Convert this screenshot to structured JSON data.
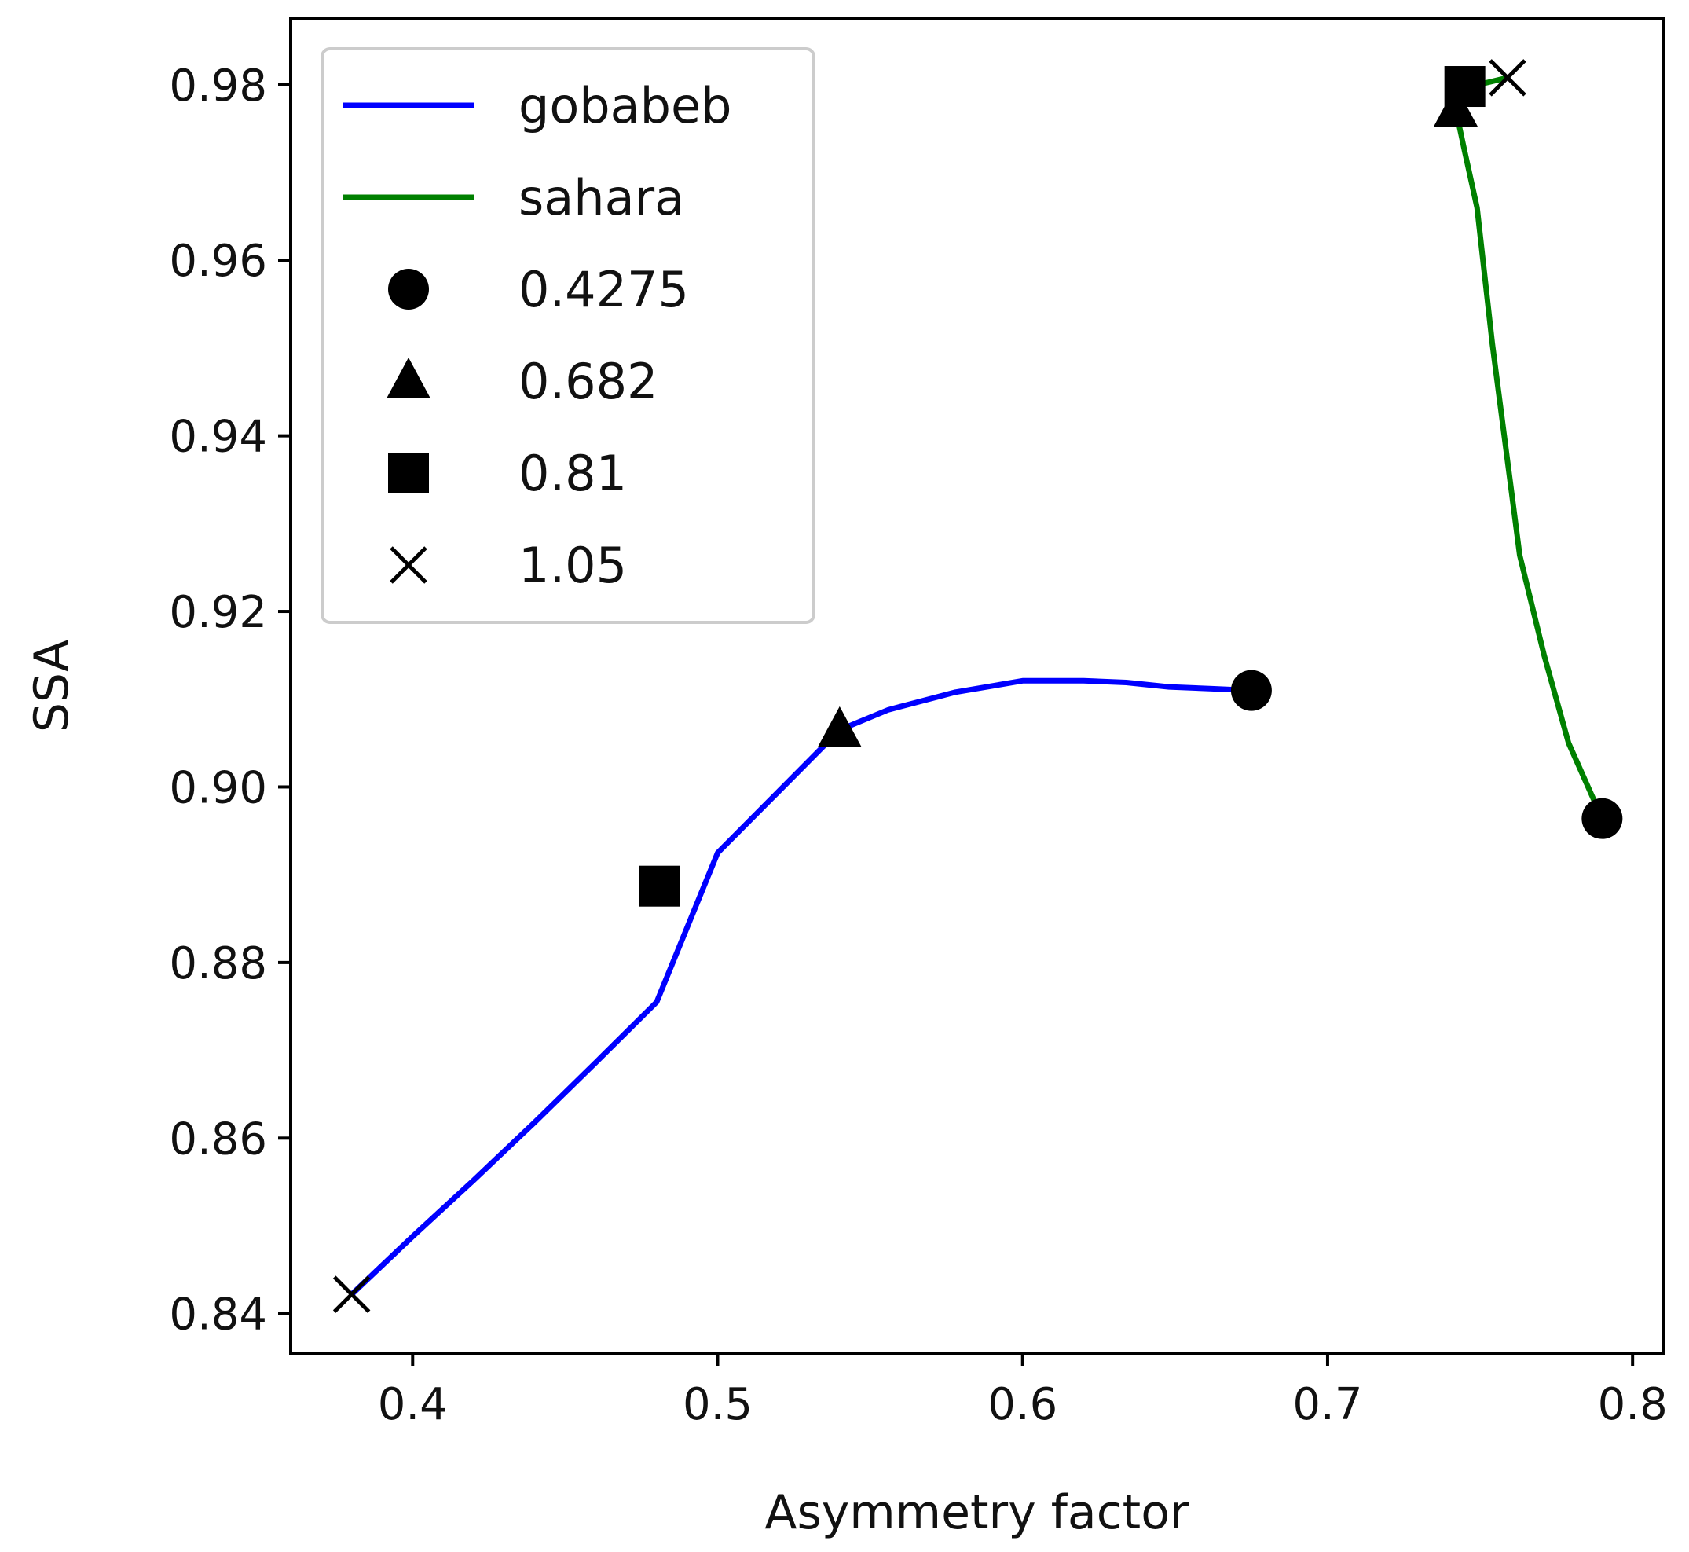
{
  "chart_data": {
    "type": "line",
    "title": "",
    "xlabel": "Asymmetry factor",
    "ylabel": "SSA",
    "xlim": [
      0.36,
      0.81
    ],
    "ylim": [
      0.8355,
      0.9875
    ],
    "xticks": [
      0.4,
      0.5,
      0.6,
      0.7,
      0.8
    ],
    "xtick_labels": [
      "0.4",
      "0.5",
      "0.6",
      "0.7",
      "0.8"
    ],
    "yticks": [
      0.84,
      0.86,
      0.88,
      0.9,
      0.92,
      0.94,
      0.96,
      0.98
    ],
    "ytick_labels": [
      "0.84",
      "0.86",
      "0.88",
      "0.90",
      "0.92",
      "0.94",
      "0.96",
      "0.98"
    ],
    "grid": false,
    "legend_position": "top-left",
    "series": [
      {
        "name": "gobabeb",
        "color": "#0000ff",
        "x": [
          0.38,
          0.4,
          0.42,
          0.44,
          0.46,
          0.48,
          0.5,
          0.52,
          0.54,
          0.556,
          0.578,
          0.6,
          0.62,
          0.634,
          0.648,
          0.662,
          0.675
        ],
        "y": [
          0.8422,
          0.8488,
          0.8552,
          0.8618,
          0.8686,
          0.8755,
          0.8925,
          0.8995,
          0.9065,
          0.9088,
          0.9108,
          0.9121,
          0.9121,
          0.9119,
          0.9114,
          0.9112,
          0.911
        ]
      },
      {
        "name": "sahara",
        "color": "#008000",
        "x": [
          0.759,
          0.747,
          0.742,
          0.745,
          0.749,
          0.754,
          0.763,
          0.771,
          0.779,
          0.79
        ],
        "y": [
          0.9808,
          0.9798,
          0.9772,
          0.9723,
          0.966,
          0.9505,
          0.9264,
          0.915,
          0.905,
          0.8964
        ]
      }
    ],
    "markers": [
      {
        "label": "0.4275",
        "shape": "circle",
        "points": [
          {
            "series": "gobabeb",
            "x": 0.675,
            "y": 0.911
          },
          {
            "series": "sahara",
            "x": 0.79,
            "y": 0.8964
          }
        ]
      },
      {
        "label": "0.682",
        "shape": "triangle",
        "points": [
          {
            "series": "gobabeb",
            "x": 0.54,
            "y": 0.9065
          },
          {
            "series": "sahara",
            "x": 0.742,
            "y": 0.9772
          }
        ]
      },
      {
        "label": "0.81",
        "shape": "square",
        "points": [
          {
            "series": "gobabeb",
            "x": 0.481,
            "y": 0.8887
          },
          {
            "series": "sahara",
            "x": 0.745,
            "y": 0.9798
          }
        ]
      },
      {
        "label": "1.05",
        "shape": "x",
        "points": [
          {
            "series": "gobabeb",
            "x": 0.38,
            "y": 0.8422
          },
          {
            "series": "sahara",
            "x": 0.759,
            "y": 0.9808
          }
        ]
      }
    ],
    "legend": [
      {
        "label": "gobabeb",
        "kind": "line",
        "color": "#0000ff"
      },
      {
        "label": "sahara",
        "kind": "line",
        "color": "#008000"
      },
      {
        "label": "0.4275",
        "kind": "marker",
        "shape": "circle"
      },
      {
        "label": "0.682",
        "kind": "marker",
        "shape": "triangle"
      },
      {
        "label": "0.81",
        "kind": "marker",
        "shape": "square"
      },
      {
        "label": "1.05",
        "kind": "marker",
        "shape": "x"
      }
    ]
  }
}
